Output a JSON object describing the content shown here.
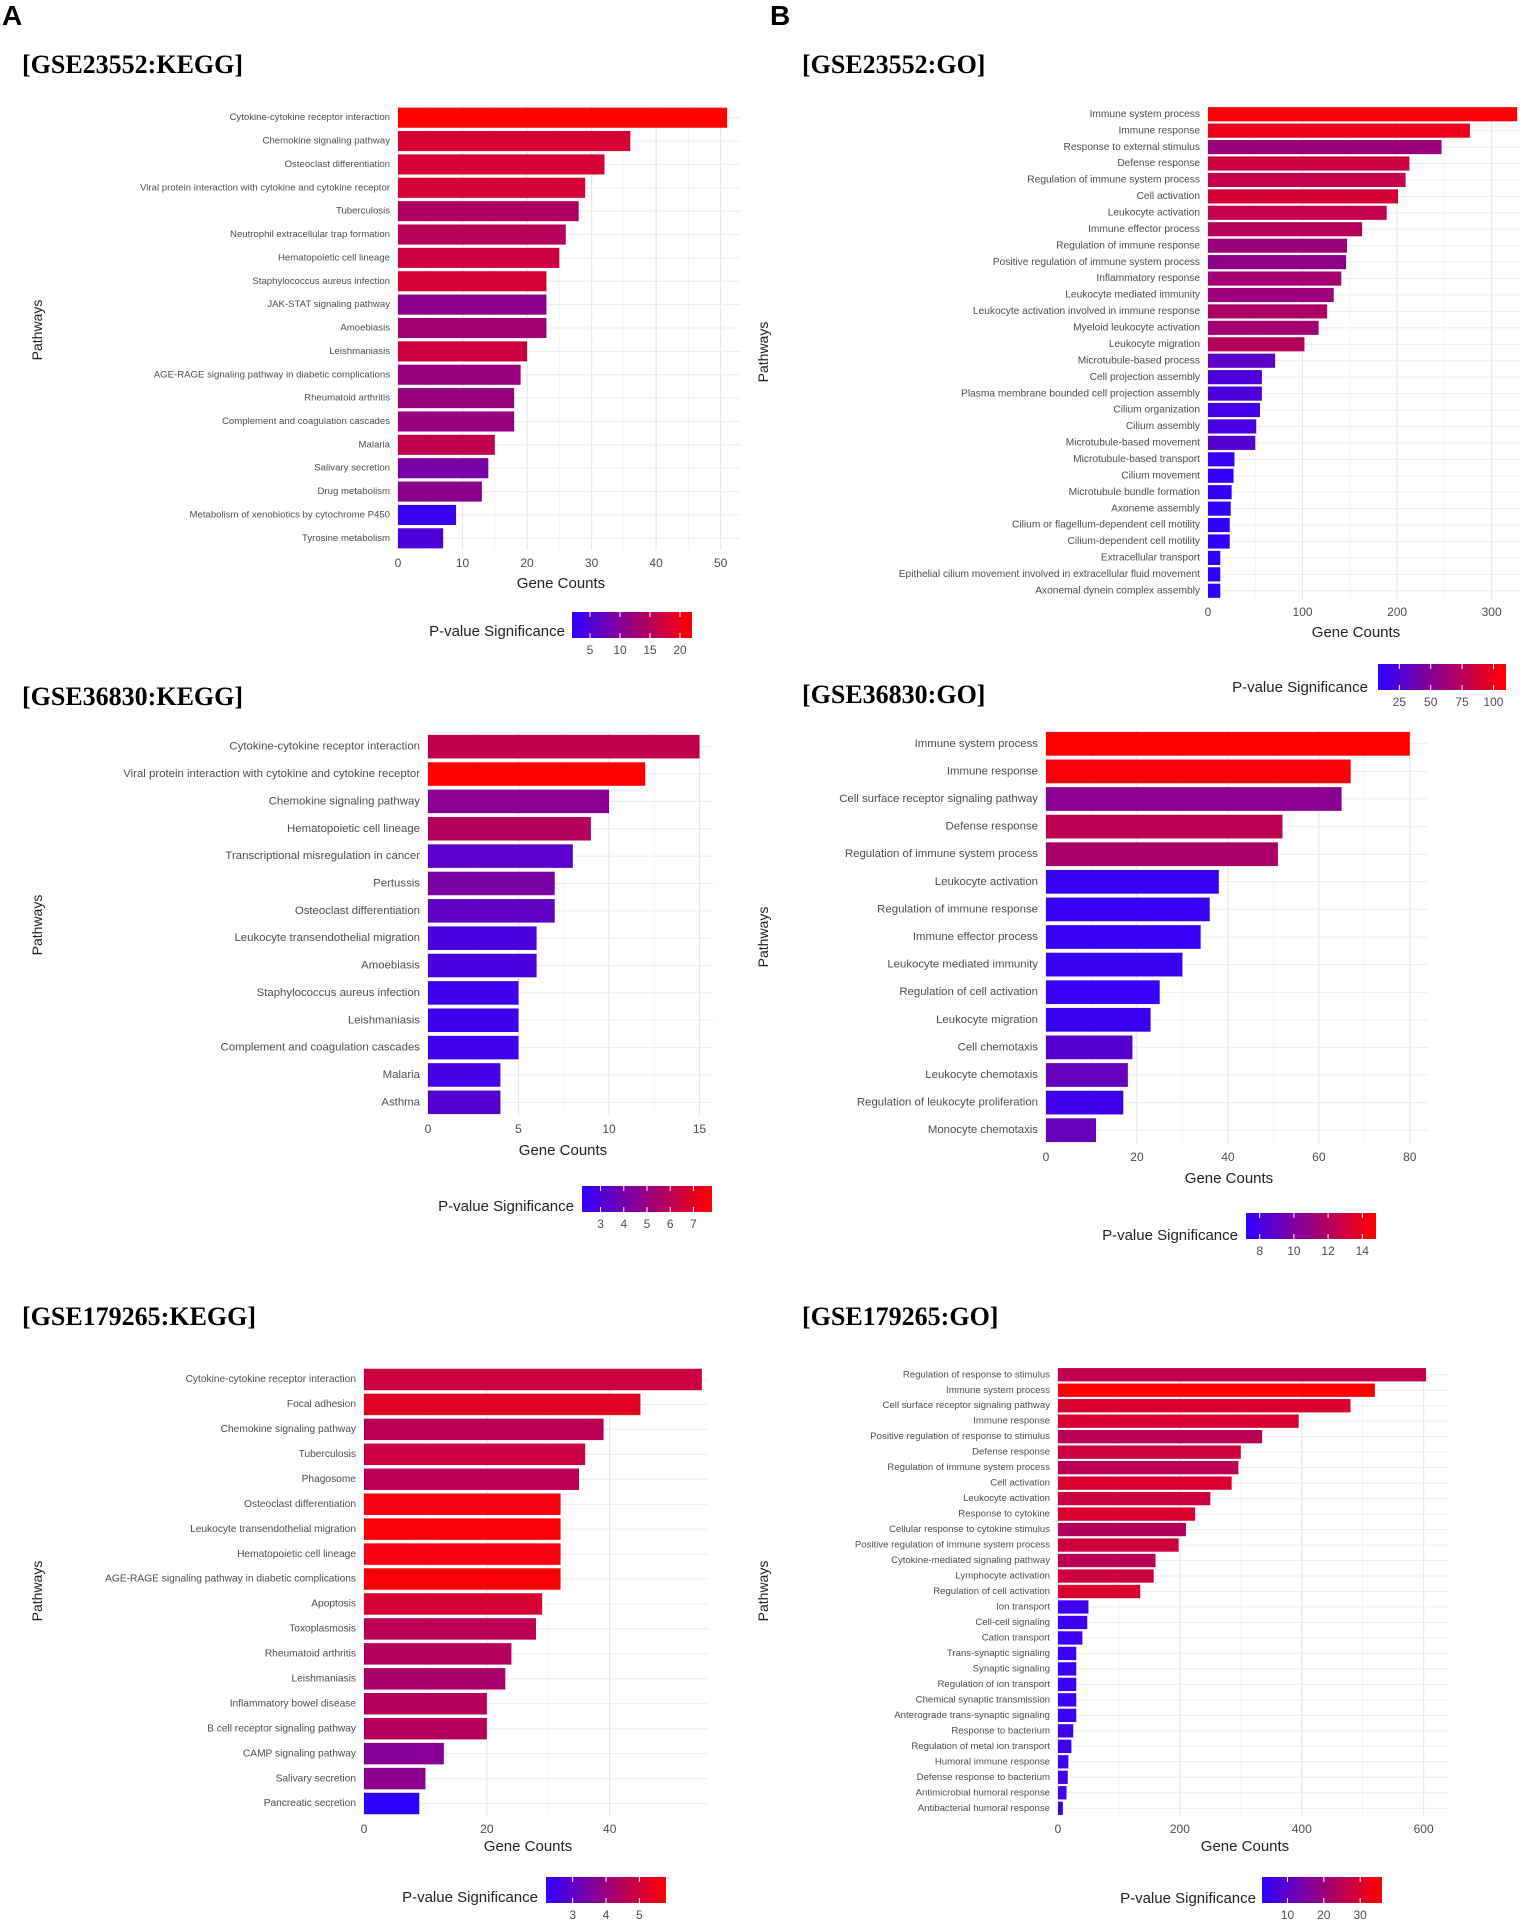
{
  "panel_labels": {
    "a": "A",
    "b": "B"
  },
  "chart_data": [
    {
      "id": "gse23552-kegg",
      "type": "bar",
      "orientation": "horizontal",
      "title": "[GSE23552:KEGG]",
      "xlabel": "Gene Counts",
      "ylabel": "Pathways",
      "xlim": [
        0,
        53
      ],
      "xticks": [
        0,
        10,
        20,
        30,
        40,
        50
      ],
      "legend": {
        "title": "P-value Significance",
        "range": [
          2,
          22
        ],
        "ticks": [
          5,
          10,
          15,
          20
        ]
      },
      "categories": [
        "Cytokine-cytokine receptor interaction",
        "Chemokine signaling pathway",
        "Osteoclast differentiation",
        "Viral protein interaction with cytokine and cytokine receptor",
        "Tuberculosis",
        "Neutrophil extracellular trap formation",
        "Hematopoietic cell lineage",
        "Staphylococcus aureus infection",
        "JAK-STAT signaling pathway",
        "Amoebiasis",
        "Leishmaniasis",
        "AGE-RAGE signaling pathway in diabetic complications",
        "Rheumatoid arthritis",
        "Complement and coagulation cascades",
        "Malaria",
        "Salivary secretion",
        "Drug metabolism",
        "Metabolism of xenobiotics by cytochrome P450",
        "Tyrosine metabolism"
      ],
      "values": [
        51,
        36,
        32,
        29,
        28,
        26,
        25,
        23,
        23,
        23,
        20,
        19,
        18,
        18,
        15,
        14,
        13,
        9,
        7
      ],
      "significance": [
        22,
        18,
        18,
        18,
        14,
        15,
        17,
        18,
        11,
        13,
        17,
        12,
        12,
        12,
        16,
        9,
        11,
        3,
        5
      ]
    },
    {
      "id": "gse23552-go",
      "type": "bar",
      "orientation": "horizontal",
      "title": "[GSE23552:GO]",
      "xlabel": "Gene Counts",
      "ylabel": "Pathways",
      "xlim": [
        0,
        330
      ],
      "xticks": [
        0,
        100,
        200,
        300
      ],
      "legend": {
        "title": "P-value Significance",
        "range": [
          8,
          110
        ],
        "ticks": [
          25,
          50,
          75,
          100
        ]
      },
      "categories": [
        "Immune system process",
        "Immune response",
        "Response to external stimulus",
        "Defense response",
        "Regulation of immune system process",
        "Cell activation",
        "Leukocyte activation",
        "Immune effector process",
        "Regulation of immune response",
        "Positive regulation of immune system process",
        "Inflammatory response",
        "Leukocyte mediated immunity",
        "Leukocyte activation involved in immune response",
        "Myeloid leukocyte activation",
        "Leukocyte migration",
        "Microtubule-based process",
        "Cell projection assembly",
        "Plasma membrane bounded cell projection assembly",
        "Cilium organization",
        "Cilium assembly",
        "Microtubule-based movement",
        "Microtubule-based transport",
        "Cilium movement",
        "Microtubule bundle formation",
        "Axoneme assembly",
        "Cilium or flagellum-dependent cell motility",
        "Cilium-dependent cell motility",
        "Extracellular transport",
        "Epithelial cilium movement involved in extracellular fluid movement",
        "Axonemal dynein complex assembly"
      ],
      "values": [
        327,
        277,
        247,
        213,
        209,
        201,
        189,
        163,
        147,
        146,
        141,
        133,
        126,
        117,
        102,
        71,
        57,
        57,
        55,
        51,
        50,
        28,
        27,
        25,
        24,
        23,
        23,
        13,
        13,
        13
      ],
      "significance": [
        108,
        100,
        60,
        85,
        80,
        88,
        80,
        75,
        60,
        55,
        65,
        62,
        70,
        64,
        74,
        30,
        22,
        22,
        18,
        20,
        26,
        12,
        10,
        10,
        9,
        9,
        9,
        8,
        8,
        8
      ]
    },
    {
      "id": "gse36830-kegg",
      "type": "bar",
      "orientation": "horizontal",
      "title": "[GSE36830:KEGG]",
      "xlabel": "Gene Counts",
      "ylabel": "Pathways",
      "xlim": [
        0,
        15.8
      ],
      "xticks": [
        0,
        5,
        10,
        15
      ],
      "legend": {
        "title": "P-value Significance",
        "range": [
          2.2,
          7.8
        ],
        "ticks": [
          3,
          4,
          5,
          6,
          7
        ]
      },
      "categories": [
        "Cytokine-cytokine receptor interaction",
        "Viral protein interaction with cytokine and cytokine receptor",
        "Chemokine signaling pathway",
        "Hematopoietic cell lineage",
        "Transcriptional misregulation in cancer",
        "Pertussis",
        "Osteoclast differentiation",
        "Leukocyte transendothelial migration",
        "Amoebiasis",
        "Staphylococcus aureus infection",
        "Leishmaniasis",
        "Complement and coagulation cascades",
        "Malaria",
        "Asthma"
      ],
      "values": [
        15,
        12,
        10,
        9,
        8,
        7,
        7,
        6,
        6,
        5,
        5,
        5,
        4,
        4
      ],
      "significance": [
        6.1,
        7.8,
        4.6,
        5.8,
        3.3,
        4.2,
        3.5,
        2.9,
        2.9,
        2.6,
        2.6,
        2.6,
        2.8,
        3.2
      ]
    },
    {
      "id": "gse36830-go",
      "type": "bar",
      "orientation": "horizontal",
      "title": "[GSE36830:GO]",
      "xlabel": "Gene Counts",
      "ylabel": "Pathways",
      "xlim": [
        0,
        84
      ],
      "xticks": [
        0,
        20,
        40,
        60,
        80
      ],
      "legend": {
        "title": "P-value Significance",
        "range": [
          7.2,
          14.8
        ],
        "ticks": [
          8,
          10,
          12,
          14
        ]
      },
      "categories": [
        "Immune system process",
        "Immune response",
        "Cell surface receptor signaling pathway",
        "Defense response",
        "Regulation of immune system process",
        "Leukocyte activation",
        "Regulation of immune response",
        "Immune effector process",
        "Leukocyte mediated immunity",
        "Regulation of cell activation",
        "Leukocyte migration",
        "Cell chemotaxis",
        "Leukocyte chemotaxis",
        "Regulation of leukocyte proliferation",
        "Monocyte chemotaxis"
      ],
      "values": [
        80,
        67,
        65,
        52,
        51,
        38,
        36,
        34,
        30,
        25,
        23,
        19,
        18,
        17,
        11
      ],
      "significance": [
        14.8,
        14.5,
        10.5,
        12.3,
        11.7,
        7.5,
        7.5,
        7.5,
        7.6,
        7.5,
        7.6,
        8.6,
        9.2,
        7.8,
        9.3
      ]
    },
    {
      "id": "gse179265-kegg",
      "type": "bar",
      "orientation": "horizontal",
      "title": "[GSE179265:KEGG]",
      "xlabel": "Gene Counts",
      "ylabel": "Pathways",
      "xlim": [
        0,
        56
      ],
      "xticks": [
        0,
        20,
        40
      ],
      "legend": {
        "title": "P-value Significance",
        "range": [
          2.2,
          5.8
        ],
        "ticks": [
          3,
          4,
          5
        ]
      },
      "categories": [
        "Cytokine-cytokine receptor interaction",
        "Focal adhesion",
        "Chemokine signaling pathway",
        "Tuberculosis",
        "Phagosome",
        "Osteoclast differentiation",
        "Leukocyte transendothelial migration",
        "Hematopoietic cell lineage",
        "AGE-RAGE signaling pathway in diabetic complications",
        "Apoptosis",
        "Toxoplasmosis",
        "Rheumatoid arthritis",
        "Leishmaniasis",
        "Inflammatory bowel disease",
        "B cell receptor signaling pathway",
        "CAMP signaling pathway",
        "Salivary secretion",
        "Pancreatic secretion"
      ],
      "values": [
        55,
        45,
        39,
        36,
        35,
        32,
        32,
        32,
        32,
        29,
        28,
        24,
        23,
        20,
        20,
        13,
        10,
        9
      ],
      "significance": [
        4.9,
        5.3,
        4.6,
        4.9,
        4.6,
        5.6,
        5.7,
        5.6,
        5.7,
        5.1,
        4.6,
        4.5,
        4.3,
        4.5,
        4.5,
        3.7,
        3.8,
        2.2
      ]
    },
    {
      "id": "gse179265-go",
      "type": "bar",
      "orientation": "horizontal",
      "title": "[GSE179265:GO]",
      "xlabel": "Gene Counts",
      "ylabel": "Pathways",
      "xlim": [
        0,
        640
      ],
      "xticks": [
        0,
        200,
        400,
        600
      ],
      "legend": {
        "title": "P-value Significance",
        "range": [
          3,
          36
        ],
        "ticks": [
          10,
          20,
          30
        ]
      },
      "categories": [
        "Regulation of response to stimulus",
        "Immune system process",
        "Cell surface receptor signaling pathway",
        "Immune response",
        "Positive regulation of response to stimulus",
        "Defense response",
        "Regulation of immune system process",
        "Cell activation",
        "Leukocyte activation",
        "Response to cytokine",
        "Cellular response to cytokine stimulus",
        "Positive regulation of immune system process",
        "Cytokine-mediated signaling pathway",
        "Lymphocyte activation",
        "Regulation of cell activation",
        "Ion transport",
        "Cell-cell signaling",
        "Cation transport",
        "Trans-synaptic signaling",
        "Synaptic signaling",
        "Regulation of ion transport",
        "Chemical synaptic transmission",
        "Anterograde trans-synaptic signaling",
        "Response to bacterium",
        "Regulation of metal ion transport",
        "Humoral immune response",
        "Defense response to bacterium",
        "Antimicrobial humoral response",
        "Antibacterial humoral response"
      ],
      "values": [
        604,
        520,
        480,
        395,
        335,
        300,
        296,
        285,
        250,
        225,
        210,
        198,
        160,
        157,
        135,
        50,
        48,
        40,
        30,
        30,
        30,
        30,
        30,
        25,
        22,
        17,
        16,
        14,
        8
      ],
      "significance": [
        26,
        36,
        30,
        30,
        25,
        28,
        25,
        30,
        28,
        30,
        24,
        28,
        25,
        28,
        30,
        5,
        5,
        5,
        5,
        5,
        5,
        5,
        5,
        6,
        5,
        5,
        6,
        6,
        6
      ]
    }
  ]
}
